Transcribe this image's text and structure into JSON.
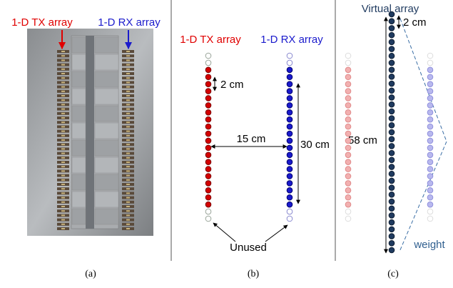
{
  "panel_a": {
    "tx_label": "1-D TX array",
    "rx_label": "1-D RX array",
    "caption": "(a)"
  },
  "panel_b": {
    "tx_label": "1-D TX array",
    "rx_label": "1-D RX array",
    "spacing_label": "2 cm",
    "gap_label": "15 cm",
    "length_label": "30 cm",
    "unused_label": "Unused",
    "caption": "(b)"
  },
  "panel_c": {
    "title": "Virtual array",
    "spacing_label": "2 cm",
    "length_label": "58 cm",
    "weight_label": "weight",
    "caption": "(c)"
  }
}
